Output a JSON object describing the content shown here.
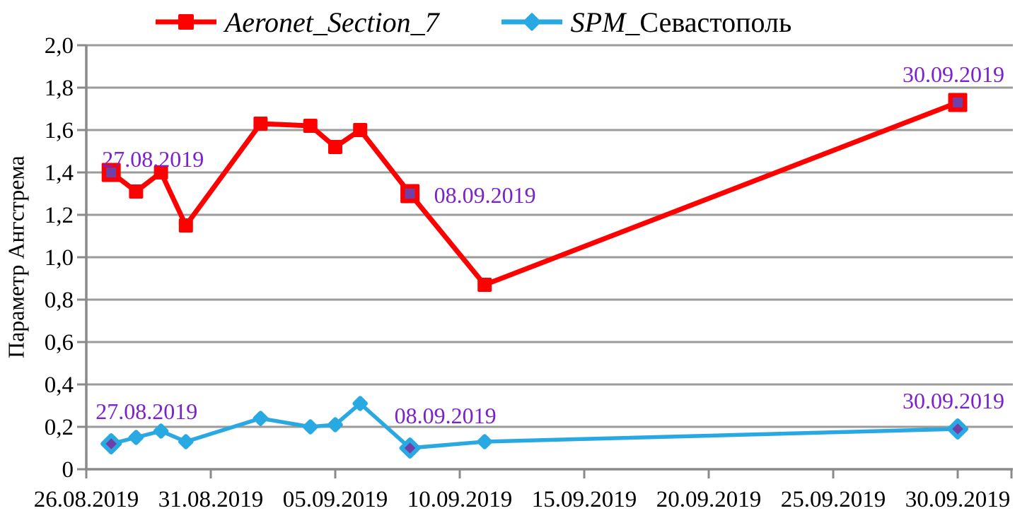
{
  "legend": {
    "items": [
      {
        "label": "Aeronet_Section_7",
        "color": "#FF0000",
        "marker": "square"
      },
      {
        "label_italic": "SPM_",
        "label_regular": "Севастополь",
        "color": "#29A9E1",
        "marker": "diamond"
      }
    ]
  },
  "chart_data": {
    "type": "line",
    "title": "",
    "xlabel": "",
    "ylabel": "Параметр Ангстрема",
    "ylim": [
      0,
      2.0
    ],
    "y_tick_step": 0.2,
    "y_tick_labels": [
      "2,0",
      "1,8",
      "1,6",
      "1,4",
      "1,2",
      "1,0",
      "0,8",
      "0,6",
      "0,4",
      "0,2",
      "0"
    ],
    "x_tick_labels": [
      "26.08.2019",
      "31.08.2019",
      "05.09.2019",
      "10.09.2019",
      "15.09.2019",
      "20.09.2019",
      "25.09.2019",
      "30.09.2019"
    ],
    "x_axis_start_date": "26.08.2019",
    "x_tick_interval_days": 5,
    "grid": true,
    "legend_position": "top",
    "grid_color": "#9B9B9B",
    "axis_color": "#8A8A8A",
    "annotation_color": "#7A22CE",
    "annotated_marker_fill": "#7040A8",
    "series": [
      {
        "name": "Aeronet_Section_7",
        "color": "#FF0000",
        "marker": "square",
        "points": [
          {
            "date": "27.08.2019",
            "value": 1.4,
            "annotated": true,
            "label": "27.08.2019",
            "label_pos": "above-right-near"
          },
          {
            "date": "28.08.2019",
            "value": 1.31
          },
          {
            "date": "29.08.2019",
            "value": 1.4
          },
          {
            "date": "30.08.2019",
            "value": 1.15
          },
          {
            "date": "02.09.2019",
            "value": 1.63
          },
          {
            "date": "04.09.2019",
            "value": 1.62
          },
          {
            "date": "05.09.2019",
            "value": 1.52
          },
          {
            "date": "06.09.2019",
            "value": 1.6
          },
          {
            "date": "08.09.2019",
            "value": 1.3,
            "annotated": true,
            "label": "08.09.2019",
            "label_pos": "right"
          },
          {
            "date": "11.09.2019",
            "value": 0.87
          },
          {
            "date": "30.09.2019",
            "value": 1.73,
            "annotated": true,
            "label": "30.09.2019",
            "label_pos": "above-left"
          }
        ]
      },
      {
        "name": "SPM_Севастополь",
        "color": "#29A9E1",
        "marker": "diamond",
        "points": [
          {
            "date": "27.08.2019",
            "value": 0.12,
            "annotated": true,
            "label": "27.08.2019",
            "label_pos": "above-right"
          },
          {
            "date": "28.08.2019",
            "value": 0.15
          },
          {
            "date": "29.08.2019",
            "value": 0.18
          },
          {
            "date": "30.08.2019",
            "value": 0.13
          },
          {
            "date": "02.09.2019",
            "value": 0.24
          },
          {
            "date": "04.09.2019",
            "value": 0.2
          },
          {
            "date": "05.09.2019",
            "value": 0.21
          },
          {
            "date": "06.09.2019",
            "value": 0.31
          },
          {
            "date": "08.09.2019",
            "value": 0.1,
            "annotated": true,
            "label": "08.09.2019",
            "label_pos": "above-right"
          },
          {
            "date": "11.09.2019",
            "value": 0.13
          },
          {
            "date": "30.09.2019",
            "value": 0.19,
            "annotated": true,
            "label": "30.09.2019",
            "label_pos": "above-left"
          }
        ]
      }
    ]
  }
}
